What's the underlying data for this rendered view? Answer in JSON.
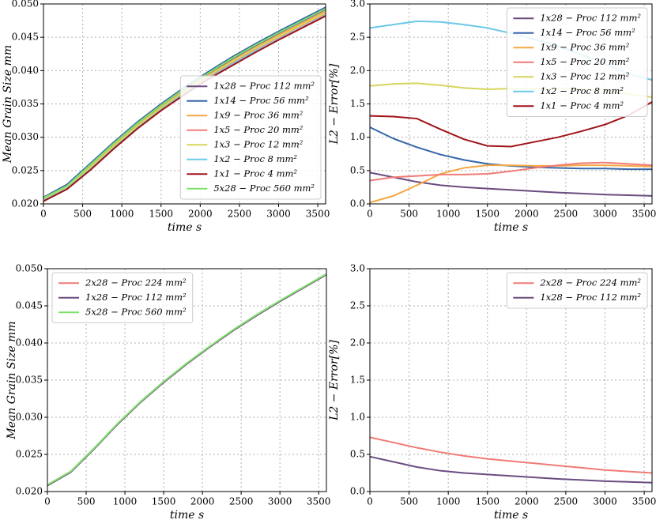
{
  "chart_data": [
    {
      "type": "line",
      "xlabel": "time s",
      "ylabel": "Mean Grain Size mm",
      "x": [
        0,
        300,
        600,
        900,
        1200,
        1500,
        1800,
        2100,
        2400,
        2700,
        3000,
        3300,
        3600
      ],
      "xlim": [
        0,
        3600
      ],
      "xticks": [
        0,
        500,
        1000,
        1500,
        2000,
        2500,
        3000,
        3500
      ],
      "ylim": [
        0.02,
        0.05
      ],
      "yticks": [
        {
          "value": 0.02,
          "label": "0.020"
        },
        0.025,
        {
          "value": 0.03,
          "label": "0.030"
        },
        0.035,
        {
          "value": 0.04,
          "label": "0.040"
        },
        0.045,
        {
          "value": 0.05,
          "label": "0.050"
        }
      ],
      "grid": true,
      "legend": "lower right",
      "series": [
        {
          "name": "1x28 − Proc 112 mm²",
          "color": "#6b4c80",
          "values": [
            0.0208,
            0.0226,
            0.0257,
            0.029,
            0.032,
            0.0347,
            0.0372,
            0.0395,
            0.0417,
            0.0437,
            0.0456,
            0.0474,
            0.0492
          ]
        },
        {
          "name": "1x14 − Proc 56 mm²",
          "color": "#3565a8",
          "values": [
            0.021,
            0.0229,
            0.0261,
            0.0293,
            0.0323,
            0.035,
            0.0375,
            0.0398,
            0.042,
            0.044,
            0.0459,
            0.0477,
            0.0495
          ]
        },
        {
          "name": "1x9 − Proc 36 mm²",
          "color": "#f5a742",
          "values": [
            0.0207,
            0.0225,
            0.0256,
            0.0288,
            0.0318,
            0.0345,
            0.037,
            0.0393,
            0.0414,
            0.0434,
            0.0453,
            0.0471,
            0.0489
          ]
        },
        {
          "name": "1x5 − Proc 20 mm²",
          "color": "#f07b76",
          "values": [
            0.0206,
            0.0224,
            0.0254,
            0.0286,
            0.0316,
            0.0343,
            0.0368,
            0.0391,
            0.0412,
            0.0432,
            0.045,
            0.0468,
            0.0486
          ]
        },
        {
          "name": "1x3 − Proc 12 mm²",
          "color": "#d6d65c",
          "values": [
            0.0207,
            0.0225,
            0.0255,
            0.0287,
            0.0317,
            0.0344,
            0.0369,
            0.0392,
            0.0413,
            0.0433,
            0.0451,
            0.0469,
            0.0487
          ]
        },
        {
          "name": "1x2 − Proc 8 mm²",
          "color": "#6cc8e8",
          "values": [
            0.0205,
            0.0223,
            0.0252,
            0.0284,
            0.0314,
            0.0341,
            0.0366,
            0.0388,
            0.0409,
            0.0429,
            0.0447,
            0.0465,
            0.0483
          ]
        },
        {
          "name": "1x1 − Proc 4 mm²",
          "color": "#a01418",
          "values": [
            0.0204,
            0.0222,
            0.0251,
            0.0283,
            0.0313,
            0.034,
            0.0364,
            0.0387,
            0.0407,
            0.0427,
            0.0446,
            0.0464,
            0.0482
          ]
        },
        {
          "name": "5x28 − Proc 560 mm²",
          "color": "#7ee06c",
          "values": [
            0.0209,
            0.0227,
            0.0259,
            0.0291,
            0.0321,
            0.0348,
            0.0373,
            0.0396,
            0.0418,
            0.0438,
            0.0457,
            0.0475,
            0.0493
          ]
        }
      ]
    },
    {
      "type": "line",
      "xlabel": "time s",
      "ylabel": "L2 − Error[%]",
      "x": [
        0,
        300,
        600,
        900,
        1200,
        1500,
        1800,
        2100,
        2400,
        2700,
        3000,
        3300,
        3600
      ],
      "xlim": [
        0,
        3600
      ],
      "xticks": [
        0,
        500,
        1000,
        1500,
        2000,
        2500,
        3000,
        3500
      ],
      "ylim": [
        0,
        3
      ],
      "yticks": [
        {
          "value": 0,
          "label": "0.0"
        },
        0.5,
        {
          "value": 1,
          "label": "1.0"
        },
        1.5,
        {
          "value": 2,
          "label": "2.0"
        },
        2.5,
        {
          "value": 3,
          "label": "3.0"
        }
      ],
      "grid": true,
      "legend": "upper right",
      "series": [
        {
          "name": "1x28 − Proc 112 mm²",
          "color": "#6b4c80",
          "values": [
            0.47,
            0.4,
            0.33,
            0.28,
            0.25,
            0.23,
            0.21,
            0.19,
            0.17,
            0.155,
            0.14,
            0.13,
            0.12
          ]
        },
        {
          "name": "1x14 − Proc 56 mm²",
          "color": "#3565a8",
          "values": [
            1.15,
            0.98,
            0.85,
            0.74,
            0.66,
            0.6,
            0.57,
            0.55,
            0.54,
            0.53,
            0.53,
            0.52,
            0.52
          ]
        },
        {
          "name": "1x9 − Proc 36 mm²",
          "color": "#f5a742",
          "values": [
            0.02,
            0.12,
            0.28,
            0.45,
            0.54,
            0.58,
            0.58,
            0.57,
            0.57,
            0.58,
            0.58,
            0.57,
            0.56
          ]
        },
        {
          "name": "1x5 − Proc 20 mm²",
          "color": "#f07b76",
          "values": [
            0.35,
            0.4,
            0.42,
            0.44,
            0.44,
            0.45,
            0.49,
            0.54,
            0.58,
            0.61,
            0.62,
            0.6,
            0.58
          ]
        },
        {
          "name": "1x3 − Proc 12 mm²",
          "color": "#d6d65c",
          "values": [
            1.77,
            1.8,
            1.81,
            1.78,
            1.74,
            1.72,
            1.73,
            1.73,
            1.73,
            1.72,
            1.7,
            1.65,
            1.6
          ]
        },
        {
          "name": "1x2 − Proc 8 mm²",
          "color": "#6cc8e8",
          "values": [
            2.64,
            2.69,
            2.74,
            2.73,
            2.69,
            2.64,
            2.56,
            2.47,
            2.37,
            2.24,
            2.1,
            1.95,
            1.86
          ]
        },
        {
          "name": "1x1 − Proc 4 mm²",
          "color": "#a01418",
          "values": [
            1.32,
            1.31,
            1.28,
            1.12,
            0.97,
            0.87,
            0.86,
            0.93,
            1.0,
            1.09,
            1.19,
            1.33,
            1.53
          ]
        }
      ]
    },
    {
      "type": "line",
      "xlabel": "time s",
      "ylabel": "Mean Grain Size mm",
      "x": [
        0,
        300,
        600,
        900,
        1200,
        1500,
        1800,
        2100,
        2400,
        2700,
        3000,
        3300,
        3600
      ],
      "xlim": [
        0,
        3600
      ],
      "xticks": [
        0,
        500,
        1000,
        1500,
        2000,
        2500,
        3000,
        3500
      ],
      "ylim": [
        0.02,
        0.05
      ],
      "yticks": [
        {
          "value": 0.02,
          "label": "0.020"
        },
        0.025,
        {
          "value": 0.03,
          "label": "0.030"
        },
        0.035,
        {
          "value": 0.04,
          "label": "0.040"
        },
        0.045,
        {
          "value": 0.05,
          "label": "0.050"
        }
      ],
      "grid": true,
      "legend": "upper left",
      "series": [
        {
          "name": "2x28 − Proc 224 mm²",
          "color": "#f07b76",
          "values": [
            0.0209,
            0.0227,
            0.0258,
            0.029,
            0.032,
            0.0347,
            0.0372,
            0.0395,
            0.0417,
            0.0437,
            0.0456,
            0.0474,
            0.0492
          ]
        },
        {
          "name": "1x28 − Proc 112 mm²",
          "color": "#6b4c80",
          "values": [
            0.0208,
            0.0226,
            0.0257,
            0.029,
            0.032,
            0.0347,
            0.0372,
            0.0395,
            0.0417,
            0.0437,
            0.0456,
            0.0474,
            0.0492
          ]
        },
        {
          "name": "5x28 − Proc 560 mm²",
          "color": "#7ee06c",
          "values": [
            0.0209,
            0.0227,
            0.0258,
            0.0291,
            0.0321,
            0.0348,
            0.0373,
            0.0396,
            0.0418,
            0.0438,
            0.0457,
            0.0475,
            0.0493
          ]
        }
      ]
    },
    {
      "type": "line",
      "xlabel": "time s",
      "ylabel": "L2 − Error[%]",
      "x": [
        0,
        300,
        600,
        900,
        1200,
        1500,
        1800,
        2100,
        2400,
        2700,
        3000,
        3300,
        3600
      ],
      "xlim": [
        0,
        3600
      ],
      "xticks": [
        0,
        500,
        1000,
        1500,
        2000,
        2500,
        3000,
        3500
      ],
      "ylim": [
        0,
        3
      ],
      "yticks": [
        {
          "value": 0,
          "label": "0.0"
        },
        0.5,
        {
          "value": 1,
          "label": "1.0"
        },
        1.5,
        {
          "value": 2,
          "label": "2.0"
        },
        2.5,
        {
          "value": 3,
          "label": "3.0"
        }
      ],
      "grid": true,
      "legend": "upper right",
      "series": [
        {
          "name": "2x28 − Proc 224 mm²",
          "color": "#f07b76",
          "values": [
            0.73,
            0.66,
            0.59,
            0.53,
            0.48,
            0.44,
            0.41,
            0.38,
            0.35,
            0.32,
            0.29,
            0.27,
            0.25
          ]
        },
        {
          "name": "1x28 − Proc 112 mm²",
          "color": "#6b4c80",
          "values": [
            0.47,
            0.4,
            0.33,
            0.28,
            0.25,
            0.23,
            0.21,
            0.19,
            0.17,
            0.155,
            0.14,
            0.13,
            0.12
          ]
        }
      ]
    }
  ]
}
